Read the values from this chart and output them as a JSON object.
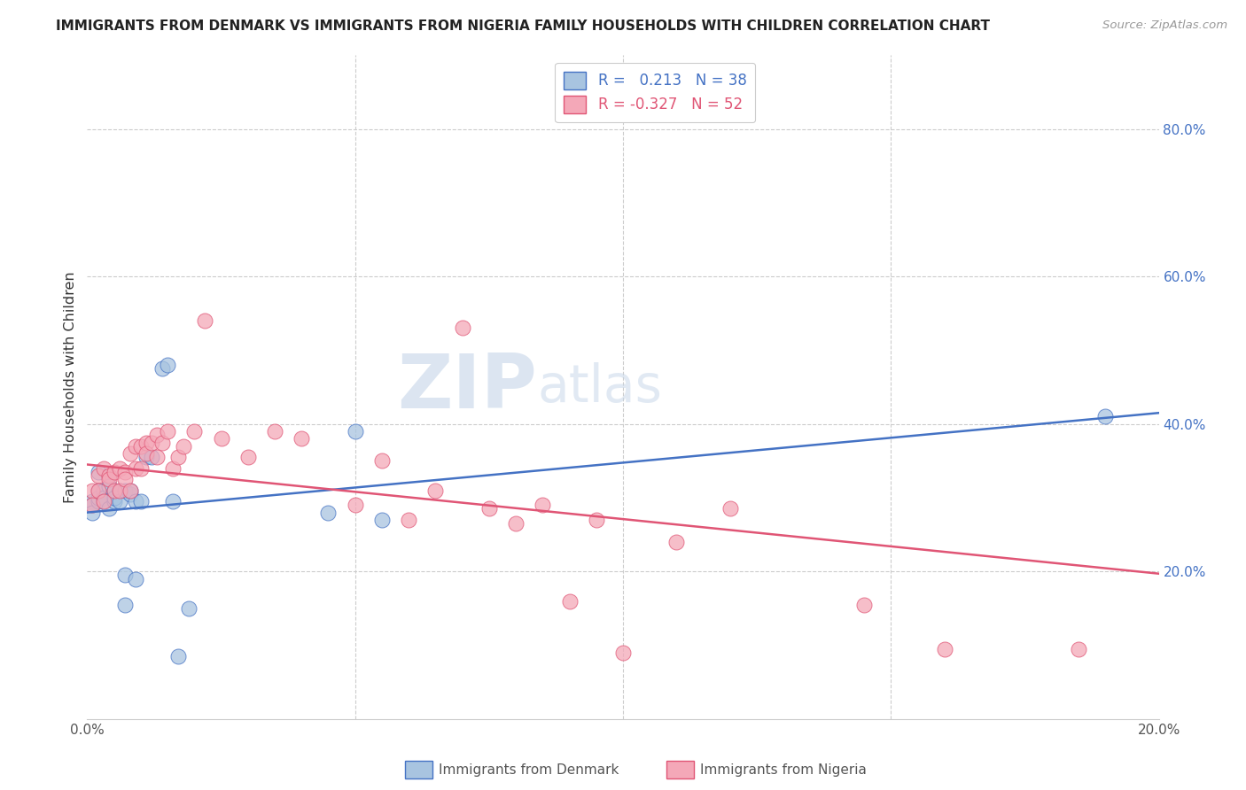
{
  "title": "IMMIGRANTS FROM DENMARK VS IMMIGRANTS FROM NIGERIA FAMILY HOUSEHOLDS WITH CHILDREN CORRELATION CHART",
  "source": "Source: ZipAtlas.com",
  "ylabel": "Family Households with Children",
  "xlim": [
    0.0,
    0.2
  ],
  "ylim": [
    0.0,
    0.9
  ],
  "color_denmark": "#a8c4e0",
  "color_nigeria": "#f4a8b8",
  "color_line_denmark": "#4472c4",
  "color_line_nigeria": "#e05575",
  "watermark_zip": "ZIP",
  "watermark_atlas": "atlas",
  "denmark_x": [
    0.001,
    0.001,
    0.001,
    0.002,
    0.002,
    0.002,
    0.002,
    0.003,
    0.003,
    0.003,
    0.004,
    0.004,
    0.004,
    0.005,
    0.005,
    0.005,
    0.006,
    0.006,
    0.007,
    0.007,
    0.007,
    0.008,
    0.008,
    0.009,
    0.009,
    0.01,
    0.011,
    0.012,
    0.014,
    0.015,
    0.016,
    0.017,
    0.019,
    0.045,
    0.05,
    0.055,
    0.19
  ],
  "denmark_y": [
    0.295,
    0.29,
    0.28,
    0.31,
    0.335,
    0.295,
    0.3,
    0.31,
    0.3,
    0.295,
    0.33,
    0.315,
    0.285,
    0.31,
    0.295,
    0.3,
    0.31,
    0.295,
    0.31,
    0.155,
    0.195,
    0.305,
    0.31,
    0.295,
    0.19,
    0.295,
    0.355,
    0.355,
    0.475,
    0.48,
    0.295,
    0.085,
    0.15,
    0.28,
    0.39,
    0.27,
    0.41
  ],
  "nigeria_x": [
    0.001,
    0.001,
    0.002,
    0.002,
    0.003,
    0.003,
    0.004,
    0.004,
    0.005,
    0.005,
    0.006,
    0.006,
    0.007,
    0.007,
    0.008,
    0.008,
    0.009,
    0.009,
    0.01,
    0.01,
    0.011,
    0.011,
    0.012,
    0.013,
    0.013,
    0.014,
    0.015,
    0.016,
    0.017,
    0.018,
    0.02,
    0.022,
    0.025,
    0.03,
    0.035,
    0.04,
    0.05,
    0.055,
    0.06,
    0.065,
    0.07,
    0.075,
    0.08,
    0.085,
    0.09,
    0.095,
    0.1,
    0.11,
    0.12,
    0.145,
    0.16,
    0.185
  ],
  "nigeria_y": [
    0.31,
    0.29,
    0.33,
    0.31,
    0.34,
    0.295,
    0.33,
    0.325,
    0.335,
    0.31,
    0.34,
    0.31,
    0.335,
    0.325,
    0.36,
    0.31,
    0.37,
    0.34,
    0.37,
    0.34,
    0.375,
    0.36,
    0.375,
    0.355,
    0.385,
    0.375,
    0.39,
    0.34,
    0.355,
    0.37,
    0.39,
    0.54,
    0.38,
    0.355,
    0.39,
    0.38,
    0.29,
    0.35,
    0.27,
    0.31,
    0.53,
    0.285,
    0.265,
    0.29,
    0.16,
    0.27,
    0.09,
    0.24,
    0.285,
    0.155,
    0.095,
    0.095
  ],
  "trend_dk_x0": 0.0,
  "trend_dk_x1": 0.2,
  "trend_dk_y0": 0.28,
  "trend_dk_y1": 0.415,
  "trend_ng_x0": 0.0,
  "trend_ng_x1": 0.2,
  "trend_ng_y0": 0.345,
  "trend_ng_y1": 0.197
}
